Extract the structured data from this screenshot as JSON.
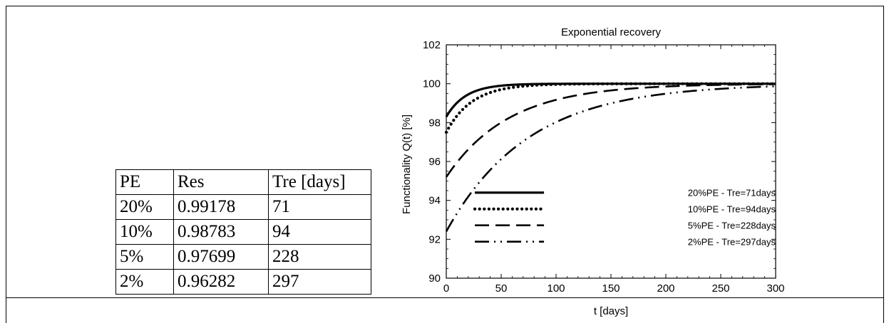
{
  "table": {
    "headers": [
      "PE",
      "Res",
      "Tre [days]"
    ],
    "rows": [
      [
        "20%",
        "0.99178",
        "71"
      ],
      [
        "10%",
        "0.98783",
        "94"
      ],
      [
        "5%",
        "0.97699",
        "228"
      ],
      [
        "2%",
        "0.96282",
        "297"
      ]
    ]
  },
  "chart_data": {
    "type": "line",
    "title": "Exponential recovery",
    "xlabel": "t [days]",
    "ylabel": "Functionality Q(t) [%]",
    "xlim": [
      0,
      300
    ],
    "ylim": [
      90,
      102
    ],
    "xticks": [
      0,
      50,
      100,
      150,
      200,
      250,
      300
    ],
    "yticks": [
      90,
      92,
      94,
      96,
      98,
      100,
      102
    ],
    "grid": false,
    "legend_position": "bottom-right",
    "series": [
      {
        "name": "20%PE  - Tre=71days",
        "style": "solid",
        "q0": 98.3,
        "recovery_time": 71
      },
      {
        "name": "10%PE  - Tre=94days",
        "style": "dotted",
        "q0": 97.5,
        "recovery_time": 94
      },
      {
        "name": "5%PE  - Tre=228days",
        "style": "dashed",
        "q0": 95.2,
        "recovery_time": 228
      },
      {
        "name": "2%PE  - Tre=297days",
        "style": "dash-dot-dot",
        "q0": 92.4,
        "recovery_time": 297
      }
    ]
  }
}
